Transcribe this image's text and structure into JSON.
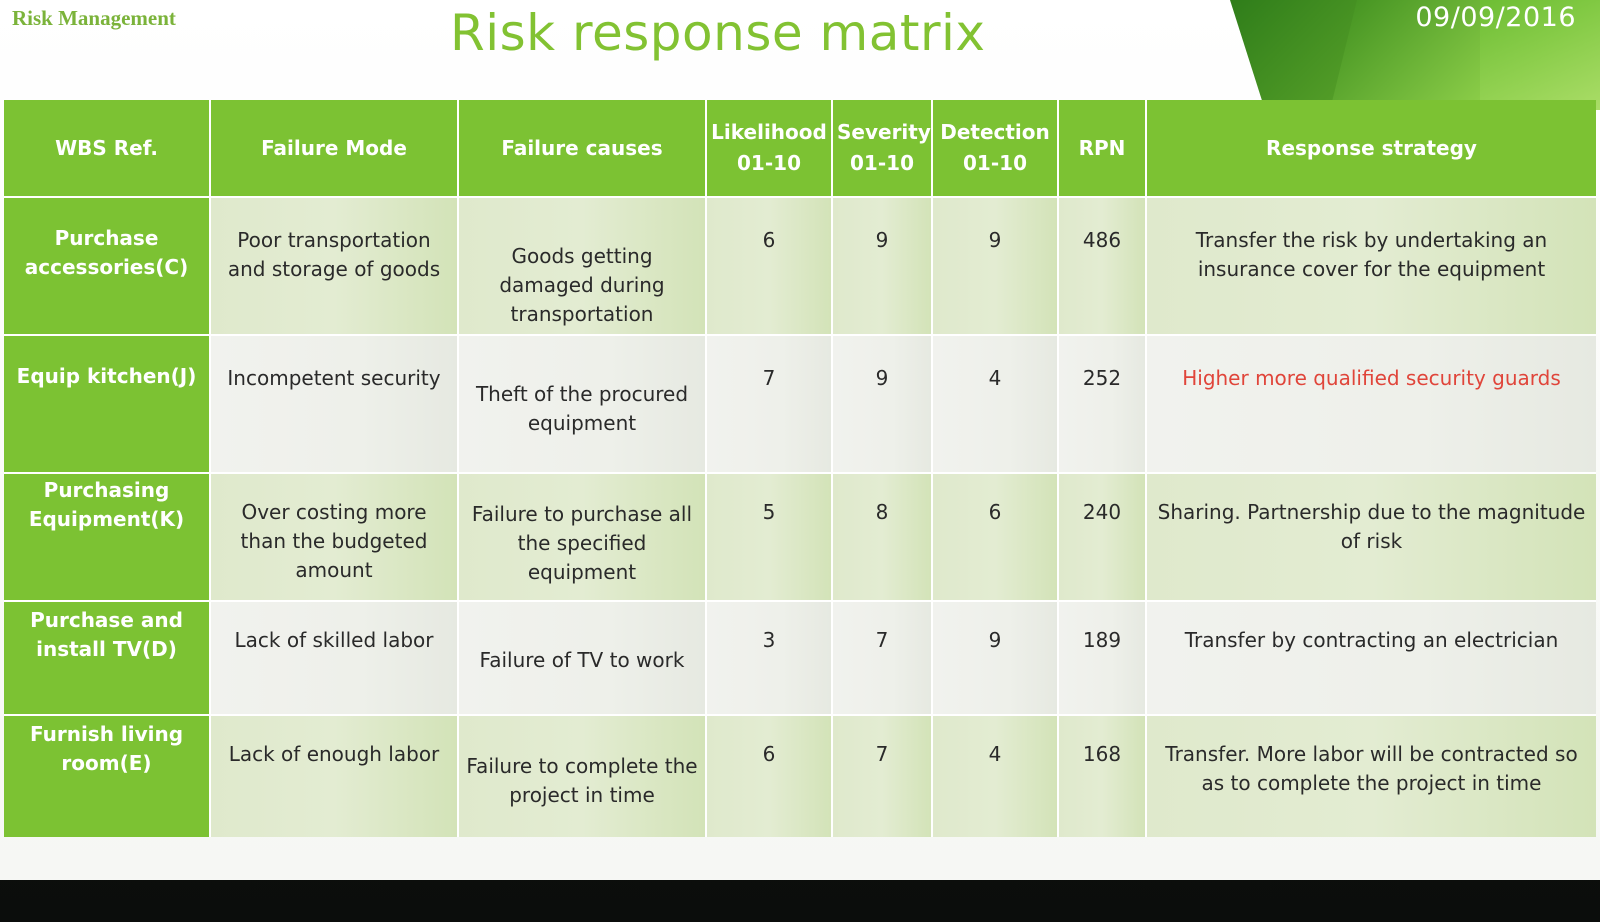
{
  "slide": {
    "brand": "Risk Management",
    "title": "Risk response matrix",
    "date": "09/09/2016"
  },
  "table": {
    "headers": {
      "wbs": "WBS Ref.",
      "failure_mode": "Failure  Mode",
      "failure_causes": "Failure causes",
      "likelihood": "Likelihood 01-10",
      "severity": "Severity 01-10",
      "detection": "Detection 01-10",
      "rpn": "RPN",
      "response": "Response strategy"
    },
    "rows": [
      {
        "wbs": "Purchase accessories(C)",
        "failure_mode": "Poor transportation and storage of goods",
        "failure_causes": "Goods getting damaged during transportation",
        "likelihood": "6",
        "severity": "9",
        "detection": "9",
        "rpn": "486",
        "response": "Transfer the risk by undertaking an insurance cover for the equipment"
      },
      {
        "wbs": "Equip kitchen(J)",
        "failure_mode": "Incompetent security",
        "failure_causes": "Theft of the procured equipment",
        "likelihood": "7",
        "severity": "9",
        "detection": "4",
        "rpn": "252",
        "response": "Higher more qualified security guards",
        "response_color": "#e0453a"
      },
      {
        "wbs": "Purchasing Equipment(K)",
        "failure_mode": "Over costing more than the budgeted amount",
        "failure_causes": "Failure to purchase all the specified equipment",
        "likelihood": "5",
        "severity": "8",
        "detection": "6",
        "rpn": "240",
        "response": "Sharing. Partnership due to the magnitude of risk"
      },
      {
        "wbs": "Purchase and install TV(D)",
        "failure_mode": "Lack of skilled labor",
        "failure_causes": "Failure of TV to work",
        "likelihood": "3",
        "severity": "7",
        "detection": "9",
        "rpn": "189",
        "response": "Transfer by contracting an electrician"
      },
      {
        "wbs": "Furnish living room(E)",
        "failure_mode": "Lack of enough labor",
        "failure_causes": "Failure to complete the project in time",
        "likelihood": "6",
        "severity": "7",
        "detection": "4",
        "rpn": "168",
        "response": "Transfer. More labor will be contracted so as to complete the project in time"
      }
    ]
  },
  "colors": {
    "header_green": "#7cc233",
    "title_green": "#82c232",
    "highlight_red": "#e0453a"
  }
}
